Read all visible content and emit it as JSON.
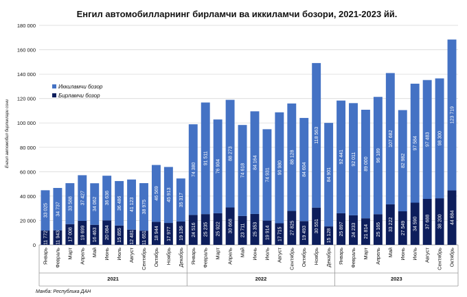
{
  "chart_data": {
    "type": "bar",
    "stacked": true,
    "title": "Енгил автомобилларнинг бирламчи ва иккиламчи бозори, 2021-2023 йй.",
    "ylabel": "Енгил автомобил бирликлари сони",
    "ylim": [
      0,
      180000
    ],
    "yticks": [
      "0",
      "20 000",
      "40 000",
      "60 000",
      "80 000",
      "100 000",
      "120 000",
      "140 000",
      "160 000",
      "180 000"
    ],
    "ytick_values": [
      0,
      20000,
      40000,
      60000,
      80000,
      100000,
      120000,
      140000,
      160000,
      180000
    ],
    "grid": true,
    "legend_position": "upper-left",
    "source": "Манба: Республика ДАН",
    "categories": [
      "Январь",
      "Февраль",
      "Март",
      "Апрель",
      "Май",
      "Июнь",
      "Июль",
      "Август",
      "Сентябрь",
      "Октябрь",
      "Ноябрь",
      "Декабрь",
      "Январь",
      "Февраль",
      "Март",
      "Апрель",
      "Май",
      "Июнь",
      "Июль",
      "Август",
      "Сентябрь",
      "Октябрь",
      "Ноябрь",
      "Декабрь",
      "Январь",
      "Февраль",
      "Март",
      "Апрель",
      "Май",
      "Июнь",
      "Июль",
      "Август",
      "Сентябрь",
      "Октябрь"
    ],
    "groups": [
      {
        "label": "2021",
        "start": 0,
        "count": 12
      },
      {
        "label": "2022",
        "start": 12,
        "count": 12
      },
      {
        "label": "2023",
        "start": 24,
        "count": 10
      }
    ],
    "series": [
      {
        "name": "Бирламчи бозор",
        "color": "#0d1e5c",
        "values": [
          11772,
          11943,
          17008,
          19699,
          16463,
          20084,
          15855,
          12481,
          11651,
          18944,
          17977,
          19136,
          24516,
          25235,
          25922,
          30668,
          23711,
          25353,
          19914,
          17715,
          27825,
          19493,
          30551,
          15128,
          25897,
          24233,
          21814,
          25165,
          33222,
          27549,
          34590,
          37688,
          38200,
          44684
        ],
        "labels": [
          "11 772",
          "11 943",
          "17 008",
          "19 699",
          "16 463",
          "20 084",
          "15 855",
          "12 481",
          "11 651",
          "18 944",
          "17 977",
          "19 136",
          "24 516",
          "25 235",
          "25 922",
          "30 668",
          "23 711",
          "25 353",
          "19 914",
          "17 715",
          "27 825",
          "19 493",
          "30 551",
          "15 128",
          "25 897",
          "24 233",
          "21 814",
          "25 165",
          "33 222",
          "27 549",
          "34 590",
          "37 688",
          "38 200",
          "44 684"
        ]
      },
      {
        "name": "Иккиламчи бозор",
        "color": "#4472c4",
        "values": [
          33025,
          34737,
          33588,
          37427,
          34062,
          36636,
          36486,
          41123,
          38975,
          46569,
          45913,
          35317,
          74380,
          91511,
          76904,
          88273,
          74618,
          84164,
          74931,
          90980,
          88128,
          84604,
          118563,
          84901,
          92441,
          92011,
          89000,
          96189,
          107682,
          82982,
          97584,
          97483,
          98300,
          123719
        ],
        "labels": [
          "33 025",
          "34 737",
          "33 588",
          "37 427",
          "34 062",
          "36 636",
          "36 486",
          "41 123",
          "38 975",
          "46 569",
          "45 913",
          "35 317",
          "74 380",
          "91 511",
          "76 904",
          "88 273",
          "74 618",
          "84 164",
          "74 931",
          "90 980",
          "88 128",
          "84 604",
          "118 563",
          "84 901",
          "92 441",
          "92 011",
          "89 000",
          "96 189",
          "107 682",
          "82 982",
          "97 584",
          "97 483",
          "98 300",
          "123 719"
        ]
      }
    ]
  }
}
